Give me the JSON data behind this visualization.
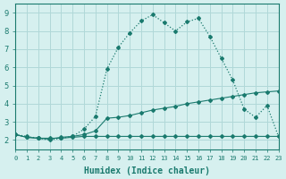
{
  "xlabel": "Humidex (Indice chaleur)",
  "bg_color": "#d6f0ef",
  "grid_color": "#b0d8d8",
  "line_color": "#1a7a6e",
  "xlim": [
    0,
    23
  ],
  "ylim": [
    1.5,
    9.5
  ],
  "xticks": [
    0,
    1,
    2,
    3,
    4,
    5,
    6,
    7,
    8,
    9,
    10,
    11,
    12,
    13,
    14,
    15,
    16,
    17,
    18,
    19,
    20,
    21,
    22,
    23
  ],
  "yticks": [
    2,
    3,
    4,
    5,
    6,
    7,
    8,
    9
  ],
  "line1_x": [
    0,
    1,
    2,
    3,
    4,
    5,
    6,
    7,
    8,
    9,
    10,
    11,
    12,
    13,
    14,
    15,
    16,
    17,
    18,
    19,
    20,
    21,
    22,
    23
  ],
  "line1_y": [
    2.3,
    2.15,
    2.1,
    2.05,
    2.15,
    2.2,
    2.3,
    2.5,
    3.2,
    3.25,
    3.35,
    3.5,
    3.65,
    3.75,
    3.85,
    4.0,
    4.1,
    4.2,
    4.3,
    4.4,
    4.5,
    4.6,
    4.65,
    4.7
  ],
  "line2_x": [
    0,
    1,
    2,
    3,
    4,
    5,
    6,
    7,
    8,
    9,
    10,
    11,
    12,
    13,
    14,
    15,
    16,
    17,
    18,
    19,
    20,
    21,
    22,
    23
  ],
  "line2_y": [
    2.3,
    2.15,
    2.1,
    2.1,
    2.1,
    2.15,
    2.2,
    2.2,
    2.2,
    2.2,
    2.2,
    2.2,
    2.2,
    2.2,
    2.2,
    2.2,
    2.2,
    2.2,
    2.2,
    2.2,
    2.2,
    2.2,
    2.2,
    2.2
  ],
  "line3_x": [
    0,
    1,
    2,
    3,
    4,
    5,
    6,
    7,
    8,
    9,
    10,
    11,
    12,
    13,
    14,
    15,
    16,
    17,
    18,
    19,
    20,
    21,
    22,
    23
  ],
  "line3_y": [
    2.3,
    2.2,
    2.1,
    2.0,
    2.1,
    2.2,
    2.6,
    3.3,
    5.9,
    7.1,
    7.9,
    8.55,
    8.9,
    8.45,
    8.0,
    8.5,
    8.7,
    7.7,
    6.5,
    5.3,
    3.7,
    3.25,
    3.9,
    2.2
  ]
}
